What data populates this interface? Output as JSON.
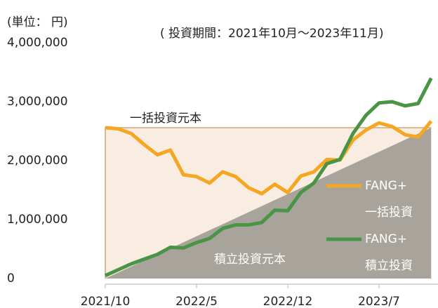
{
  "chart_data": {
    "type": "line",
    "unit_label": "(単位： 円)",
    "subtitle": "( 投資期間：2021年10月～2023年11月)",
    "categories": [
      "2021/10",
      null,
      null,
      null,
      null,
      null,
      null,
      "2022/5",
      null,
      null,
      null,
      null,
      null,
      null,
      "2022/12",
      null,
      null,
      null,
      null,
      null,
      null,
      "2023/7",
      null,
      null,
      null,
      null
    ],
    "ylim": [
      0,
      4000000
    ],
    "yticks": [
      0,
      {
        "value": 1000000,
        "label": "1,000,000"
      },
      {
        "value": 2000000,
        "label": "2,000,000"
      },
      {
        "value": 3000000,
        "label": "3,000,000"
      },
      {
        "value": 4000000,
        "label": "4,000,000"
      }
    ],
    "series": [
      {
        "name": "一括投資元本",
        "kind": "box",
        "color": "#f9ece0",
        "edge": "#c9a97c",
        "values": [
          2560000,
          2560000,
          2560000,
          2560000,
          2560000,
          2560000,
          2560000,
          2560000,
          2560000,
          2560000,
          2560000,
          2560000,
          2560000,
          2560000,
          2560000,
          2560000,
          2560000,
          2560000,
          2560000,
          2560000,
          2560000,
          2560000,
          2560000,
          2560000,
          2560000,
          2560000
        ]
      },
      {
        "name": "積立投資元本",
        "kind": "area",
        "color": "#a9a49b",
        "values": [
          0,
          102400,
          204800,
          307200,
          409600,
          512000,
          614400,
          716800,
          819200,
          921600,
          1024000,
          1126400,
          1228800,
          1331200,
          1433600,
          1536000,
          1638400,
          1740800,
          1843200,
          1945600,
          2048000,
          2150400,
          2252800,
          2355200,
          2457600,
          2560000
        ]
      },
      {
        "name": "FANG+",
        "label": "一括投資",
        "kind": "line",
        "color": "#f5a623",
        "values": [
          2560000,
          2540000,
          2460000,
          2270000,
          2100000,
          2180000,
          1760000,
          1730000,
          1620000,
          1810000,
          1730000,
          1540000,
          1440000,
          1600000,
          1460000,
          1740000,
          1810000,
          2020000,
          2010000,
          2350000,
          2520000,
          2640000,
          2580000,
          2440000,
          2400000,
          2670000
        ]
      },
      {
        "name": "FANG+",
        "label": "積立投資",
        "kind": "line",
        "color": "#4a9446",
        "values": [
          50000,
          150000,
          250000,
          330000,
          410000,
          530000,
          520000,
          610000,
          680000,
          850000,
          910000,
          910000,
          950000,
          1160000,
          1150000,
          1460000,
          1620000,
          1950000,
          2020000,
          2460000,
          2770000,
          2980000,
          3000000,
          2930000,
          2970000,
          3400000
        ]
      }
    ]
  }
}
